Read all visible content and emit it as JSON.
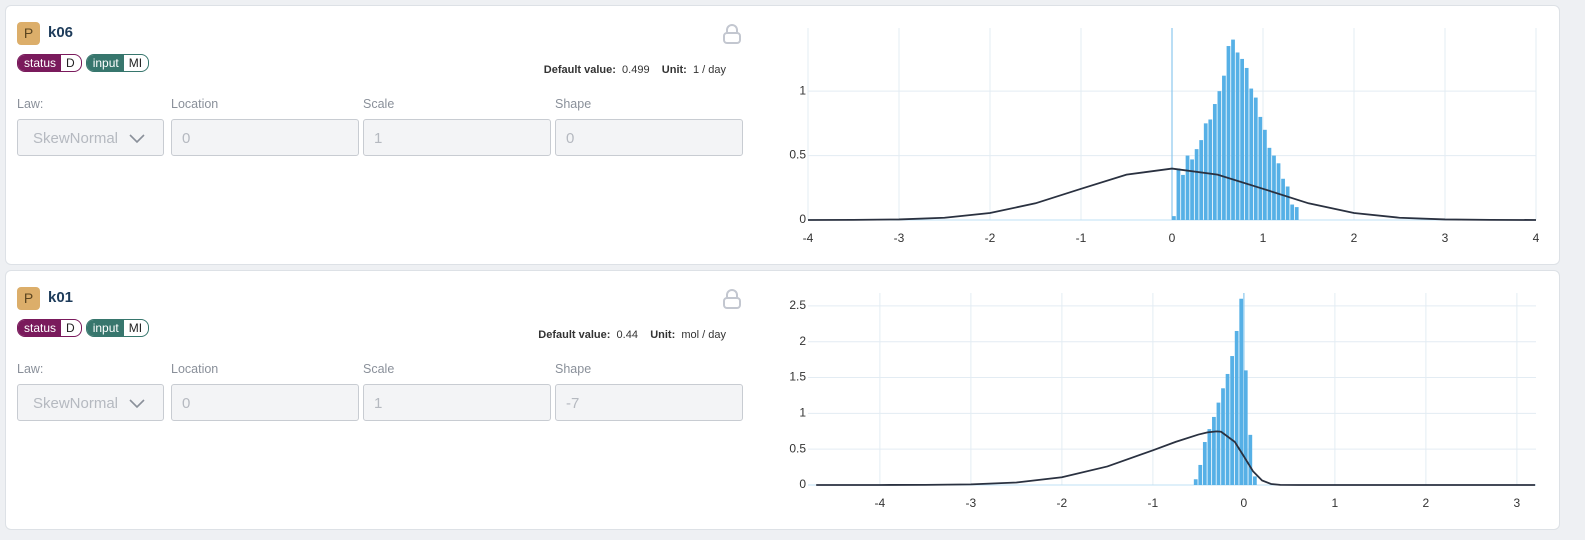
{
  "cards": [
    {
      "badge": "P",
      "name": "k06",
      "tags": [
        {
          "name": "status",
          "value": "D",
          "color": "#7a1a5c"
        },
        {
          "name": "input",
          "value": "MI",
          "color": "#37766d"
        }
      ],
      "default_label": "Default value:",
      "default_value": "0.499",
      "unit_label": "Unit:",
      "unit": "1 / day",
      "fields": [
        {
          "label": "Law:",
          "value": "SkewNormal"
        },
        {
          "label": "Location",
          "value": "0"
        },
        {
          "label": "Scale",
          "value": "1"
        },
        {
          "label": "Shape",
          "value": "0"
        }
      ]
    },
    {
      "badge": "P",
      "name": "k01",
      "tags": [
        {
          "name": "status",
          "value": "D",
          "color": "#7a1a5c"
        },
        {
          "name": "input",
          "value": "MI",
          "color": "#37766d"
        }
      ],
      "default_label": "Default value:",
      "default_value": "0.44",
      "unit_label": "Unit:",
      "unit": "mol / day",
      "fields": [
        {
          "label": "Law:",
          "value": "SkewNormal"
        },
        {
          "label": "Location",
          "value": "0"
        },
        {
          "label": "Scale",
          "value": "1"
        },
        {
          "label": "Shape",
          "value": "-7"
        }
      ]
    }
  ],
  "chart_data": [
    {
      "type": "histogram",
      "color": "#56b0e6",
      "grid": true,
      "reference_line": 0,
      "xlim": [
        -4,
        4
      ],
      "xticks": [
        -4,
        -3,
        -2,
        -1,
        0,
        1,
        2,
        3,
        4
      ],
      "ylim": [
        0,
        1.49
      ],
      "yticks": [
        0,
        0.5,
        1
      ],
      "bins": [
        0,
        0.05,
        0.1,
        0.15,
        0.2,
        0.25,
        0.3,
        0.35,
        0.4,
        0.45,
        0.5,
        0.55,
        0.6,
        0.65,
        0.7,
        0.75,
        0.8,
        0.85,
        0.9,
        0.95,
        1.0,
        1.05,
        1.1,
        1.15,
        1.2,
        1.25,
        1.3,
        1.35,
        1.4
      ],
      "counts": [
        0.03,
        0.4,
        0.35,
        0.5,
        0.47,
        0.55,
        0.62,
        0.75,
        0.78,
        0.9,
        1.0,
        1.12,
        1.35,
        1.4,
        1.3,
        1.25,
        1.18,
        1.02,
        0.95,
        0.8,
        0.7,
        0.56,
        0.5,
        0.44,
        0.32,
        0.26,
        0.12,
        0.1
      ],
      "line": {
        "color": "#2a3140",
        "x": [
          -4,
          -3.5,
          -3,
          -2.5,
          -2,
          -1.5,
          -1,
          -0.5,
          0,
          0.5,
          1,
          1.5,
          2,
          2.5,
          3,
          3.5,
          4
        ],
        "values": [
          0.0001,
          0.0009,
          0.0044,
          0.0175,
          0.054,
          0.1295,
          0.242,
          0.352,
          0.399,
          0.352,
          0.242,
          0.1295,
          0.054,
          0.0175,
          0.0044,
          0.0009,
          0.0001
        ]
      }
    },
    {
      "type": "histogram",
      "color": "#56b0e6",
      "grid": true,
      "reference_line": 0,
      "xlim": [
        -4.79,
        3.21
      ],
      "xticks": [
        -4,
        -3,
        -2,
        -1,
        0,
        1,
        2,
        3
      ],
      "ylim": [
        0,
        2.68
      ],
      "yticks": [
        0,
        0.5,
        1,
        1.5,
        2,
        2.5
      ],
      "bins": [
        -0.55,
        -0.5,
        -0.45,
        -0.4,
        -0.35,
        -0.3,
        -0.25,
        -0.2,
        -0.15,
        -0.1,
        -0.05,
        0,
        0.05,
        0.1,
        0.15
      ],
      "counts": [
        0.08,
        0.28,
        0.6,
        0.78,
        0.95,
        1.15,
        1.35,
        1.55,
        1.8,
        2.15,
        2.6,
        1.6,
        0.7,
        0.12
      ],
      "line": {
        "color": "#2a3140",
        "x": [
          -4.7,
          -4,
          -3.5,
          -3,
          -2.5,
          -2,
          -1.5,
          -1,
          -0.75,
          -0.5,
          -0.4,
          -0.3,
          -0.25,
          -0.1,
          0,
          0.1,
          0.2,
          0.3,
          0.4,
          0.6,
          1,
          2,
          3.2
        ],
        "values": [
          0,
          0.0003,
          0.0017,
          0.009,
          0.035,
          0.108,
          0.259,
          0.484,
          0.602,
          0.704,
          0.734,
          0.748,
          0.743,
          0.602,
          0.399,
          0.192,
          0.063,
          0.014,
          0.002,
          0,
          0,
          0,
          0
        ]
      }
    }
  ]
}
